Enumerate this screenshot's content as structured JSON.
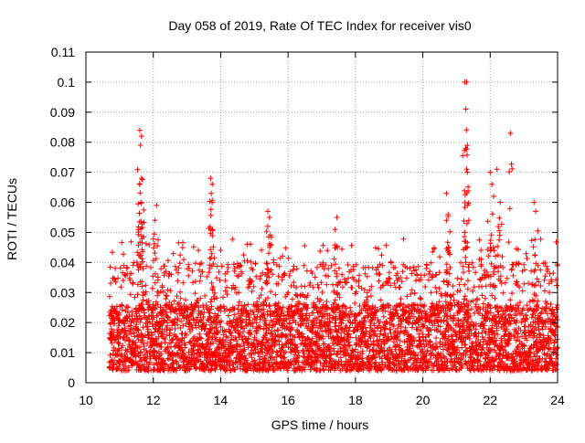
{
  "chart_data": {
    "type": "scatter",
    "title": "Day 058 of 2019, Rate Of TEC Index for receiver vis0",
    "xlabel": "GPS time / hours",
    "ylabel": "ROTI / TECUs",
    "xlim": [
      10,
      24
    ],
    "ylim": [
      0,
      0.11
    ],
    "x_ticks": [
      10,
      12,
      14,
      16,
      18,
      20,
      22,
      24
    ],
    "x_tick_labels": [
      "10",
      "12",
      "14",
      "16",
      "18",
      "20",
      "22",
      "24"
    ],
    "y_ticks": [
      0,
      0.01,
      0.02,
      0.03,
      0.04,
      0.05,
      0.06,
      0.07,
      0.08,
      0.09,
      0.1,
      0.11
    ],
    "y_tick_labels": [
      "0",
      "0.01",
      "0.02",
      "0.03",
      "0.04",
      "0.05",
      "0.06",
      "0.07",
      "0.08",
      "0.09",
      "0.1",
      "0.11"
    ],
    "grid": true,
    "marker": "+",
    "color": "#ff0000",
    "series": [
      {
        "name": "ROTI",
        "data_start_hour": 10.7,
        "data_end_hour": 24.0,
        "typical_range": [
          0.004,
          0.03
        ],
        "notable_points": [
          {
            "x": 11.6,
            "y": 0.084
          },
          {
            "x": 11.65,
            "y": 0.082
          },
          {
            "x": 11.62,
            "y": 0.079
          },
          {
            "x": 11.65,
            "y": 0.068
          },
          {
            "x": 11.6,
            "y": 0.066
          },
          {
            "x": 11.63,
            "y": 0.06
          },
          {
            "x": 12.1,
            "y": 0.059
          },
          {
            "x": 12.05,
            "y": 0.054
          },
          {
            "x": 13.7,
            "y": 0.068
          },
          {
            "x": 13.75,
            "y": 0.066
          },
          {
            "x": 13.72,
            "y": 0.063
          },
          {
            "x": 13.75,
            "y": 0.051
          },
          {
            "x": 15.4,
            "y": 0.057
          },
          {
            "x": 15.45,
            "y": 0.055
          },
          {
            "x": 15.4,
            "y": 0.052
          },
          {
            "x": 17.45,
            "y": 0.055
          },
          {
            "x": 17.4,
            "y": 0.051
          },
          {
            "x": 20.7,
            "y": 0.063
          },
          {
            "x": 20.75,
            "y": 0.056
          },
          {
            "x": 20.7,
            "y": 0.054
          },
          {
            "x": 21.25,
            "y": 0.1
          },
          {
            "x": 21.3,
            "y": 0.1
          },
          {
            "x": 21.28,
            "y": 0.091
          },
          {
            "x": 21.27,
            "y": 0.078
          },
          {
            "x": 21.3,
            "y": 0.071
          },
          {
            "x": 22.6,
            "y": 0.083
          },
          {
            "x": 22.0,
            "y": 0.07
          },
          {
            "x": 22.05,
            "y": 0.066
          },
          {
            "x": 22.2,
            "y": 0.071
          },
          {
            "x": 22.1,
            "y": 0.062
          },
          {
            "x": 22.3,
            "y": 0.06
          },
          {
            "x": 23.3,
            "y": 0.06
          },
          {
            "x": 23.35,
            "y": 0.057
          }
        ]
      }
    ]
  }
}
